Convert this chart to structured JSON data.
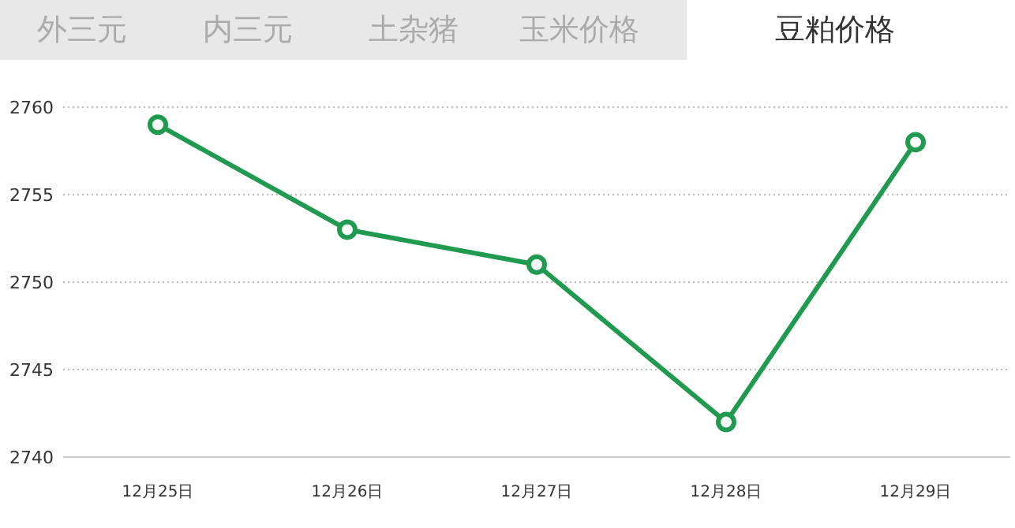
{
  "chart_data": {
    "type": "line",
    "title": "豆粕价格",
    "annotations": [
      "外三元",
      "内三元",
      "土杂猪",
      "玉米价格"
    ],
    "categories": [
      "12月25日",
      "12月26日",
      "12月27日",
      "12月28日",
      "12月29日"
    ],
    "series": [
      {
        "color": "#1f9a4e",
        "values": [
          2759,
          2753,
          2751,
          2742,
          2758
        ]
      }
    ],
    "ylim": [
      2740,
      2760
    ],
    "yticks": [
      2740,
      2745,
      2750,
      2755,
      2760
    ],
    "grid": "y",
    "marker": "circle",
    "line_style": "solid"
  }
}
